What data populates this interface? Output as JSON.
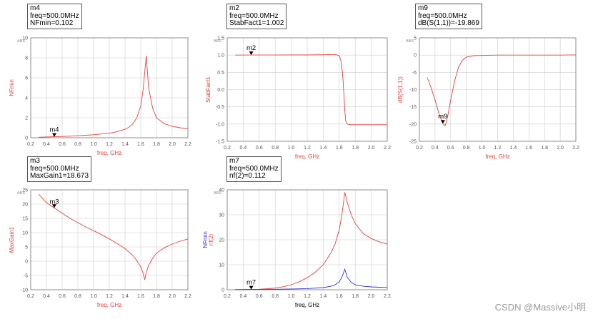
{
  "colors": {
    "trace_red": "#e8403c",
    "trace_blue": "#3333cc",
    "axis_text": "#555555",
    "grid": "#cccccc",
    "label_red": "#e8403c"
  },
  "watermark": "CSDN @Massive小明",
  "chart_data": [
    {
      "id": "nfmin",
      "type": "line",
      "ylabel": "NFmin",
      "ylabel_color": "#e8403c",
      "xlabel": "freq, GHz",
      "xlabel_color": "#e8403c",
      "scale_note": "ABS",
      "xlim": [
        0.2,
        2.2
      ],
      "ylim": [
        0,
        10
      ],
      "xticks": [
        "0.2",
        "0.4",
        "0.6",
        "0.8",
        "1.0",
        "1.2",
        "1.4",
        "1.6",
        "1.8",
        "2.0",
        "2.2"
      ],
      "yticks": [
        "0",
        "2",
        "4",
        "6",
        "8",
        "10"
      ],
      "grid": true,
      "series": [
        {
          "color": "#e8403c",
          "x": [
            0.3,
            0.4,
            0.5,
            0.6,
            0.7,
            0.8,
            0.9,
            1.0,
            1.1,
            1.2,
            1.3,
            1.4,
            1.45,
            1.5,
            1.55,
            1.6,
            1.63,
            1.65,
            1.67,
            1.7,
            1.75,
            1.8,
            1.9,
            2.0,
            2.1,
            2.2
          ],
          "y": [
            0.05,
            0.08,
            0.102,
            0.13,
            0.16,
            0.2,
            0.25,
            0.3,
            0.38,
            0.45,
            0.6,
            0.85,
            1.05,
            1.4,
            2.0,
            3.2,
            4.8,
            6.5,
            8.2,
            5.0,
            3.0,
            2.0,
            1.4,
            1.15,
            1.0,
            0.9
          ]
        }
      ],
      "marker": {
        "name": "m4",
        "x": 0.5,
        "y": 0.102,
        "label_dy": -10
      },
      "readout": {
        "name": "m4",
        "lines": [
          "freq=500.0MHz",
          "NFmin=0.102"
        ]
      }
    },
    {
      "id": "stabfact",
      "type": "line",
      "ylabel": "StabFact1",
      "ylabel_color": "#e8403c",
      "xlabel": "freq, GHz",
      "xlabel_color": "#e8403c",
      "scale_note": "ABS",
      "xlim": [
        0.2,
        2.2
      ],
      "ylim": [
        -1.5,
        1.5
      ],
      "xticks": [
        "0.2",
        "0.4",
        "0.6",
        "0.8",
        "1.0",
        "1.2",
        "1.4",
        "1.6",
        "1.8",
        "2.0",
        "2.2"
      ],
      "yticks": [
        "-1.5",
        "-1.0",
        "-0.5",
        "0.0",
        "0.5",
        "1.0",
        "1.5"
      ],
      "grid": true,
      "series": [
        {
          "color": "#e8403c",
          "x": [
            0.3,
            0.5,
            0.8,
            1.0,
            1.2,
            1.4,
            1.55,
            1.6,
            1.62,
            1.64,
            1.65,
            1.66,
            1.67,
            1.68,
            1.7,
            1.75,
            1.8,
            2.0,
            2.2
          ],
          "y": [
            1.0,
            1.002,
            1.002,
            1.003,
            1.004,
            1.01,
            1.02,
            0.98,
            0.85,
            0.5,
            0.2,
            -0.2,
            -0.6,
            -0.9,
            -1.0,
            -1.02,
            -1.02,
            -1.02,
            -1.02
          ]
        }
      ],
      "marker": {
        "name": "m2",
        "x": 0.5,
        "y": 1.002,
        "label_dy": -10
      },
      "readout": {
        "name": "m2",
        "lines": [
          "freq=500.0MHz",
          "StabFact1=1.002"
        ]
      }
    },
    {
      "id": "s11",
      "type": "line",
      "ylabel": "dB(S(1,1))",
      "ylabel_color": "#e8403c",
      "xlabel": "freq, GHz",
      "xlabel_color": "#e8403c",
      "scale_note": "ABS",
      "xlim": [
        0.2,
        2.2
      ],
      "ylim": [
        -25,
        5
      ],
      "xticks": [
        "0.2",
        "0.4",
        "0.6",
        "0.8",
        "1.0",
        "1.2",
        "1.4",
        "1.6",
        "1.8",
        "2.0",
        "2.2"
      ],
      "yticks": [
        "-25",
        "-20",
        "-15",
        "-10",
        "-5",
        "0",
        "5"
      ],
      "grid": true,
      "series": [
        {
          "color": "#e8403c",
          "x": [
            0.3,
            0.35,
            0.4,
            0.45,
            0.5,
            0.53,
            0.56,
            0.6,
            0.65,
            0.7,
            0.75,
            0.8,
            0.9,
            1.0,
            1.2,
            1.4,
            1.6,
            1.8,
            2.0,
            2.2
          ],
          "y": [
            -6.5,
            -9.5,
            -13,
            -17,
            -19.869,
            -20.5,
            -18,
            -13,
            -7.5,
            -3.5,
            -1.5,
            -0.6,
            -0.2,
            -0.1,
            0,
            0,
            0,
            0,
            0,
            0.05
          ]
        }
      ],
      "marker": {
        "name": "m9",
        "x": 0.5,
        "y": -19.869,
        "label_dy": -10
      },
      "readout": {
        "name": "m9",
        "lines": [
          "freq=500.0MHz",
          "dB(S(1,1))=-19.869"
        ]
      }
    },
    {
      "id": "maxgain",
      "type": "line",
      "ylabel": "MaxGain1",
      "ylabel_color": "#e8403c",
      "xlabel": "freq, GHz",
      "xlabel_color": "#e8403c",
      "scale_note": "ABS",
      "xlim": [
        0.2,
        2.2
      ],
      "ylim": [
        -10,
        25
      ],
      "xticks": [
        "0.2",
        "0.4",
        "0.6",
        "0.8",
        "1.0",
        "1.2",
        "1.4",
        "1.6",
        "1.8",
        "2.0",
        "2.2"
      ],
      "yticks": [
        "-10",
        "-5",
        "0",
        "5",
        "10",
        "15",
        "20",
        "25"
      ],
      "grid": true,
      "series": [
        {
          "color": "#e8403c",
          "x": [
            0.3,
            0.4,
            0.5,
            0.6,
            0.7,
            0.8,
            0.9,
            1.0,
            1.1,
            1.2,
            1.3,
            1.4,
            1.5,
            1.55,
            1.6,
            1.63,
            1.65,
            1.67,
            1.7,
            1.75,
            1.8,
            1.9,
            2.0,
            2.1,
            2.2
          ],
          "y": [
            23.5,
            20.5,
            18.673,
            16.8,
            15.0,
            13.5,
            12.0,
            10.7,
            9.3,
            7.8,
            6.2,
            4.4,
            2.0,
            0.2,
            -2.0,
            -4.2,
            -6.5,
            -4.0,
            -1.5,
            1.0,
            2.8,
            4.7,
            6.0,
            7.0,
            7.8
          ]
        }
      ],
      "marker": {
        "name": "m3",
        "x": 0.5,
        "y": 18.673,
        "label_dy": -9
      },
      "readout": {
        "name": "m3",
        "lines": [
          "freq=500.0MHz",
          "MaxGain1=18.673"
        ]
      }
    },
    {
      "id": "nf2",
      "type": "line",
      "ylabel": "NFmin",
      "ylabel_color": "#3333cc",
      "ylabel2": "nf(2)",
      "ylabel2_color": "#e8403c",
      "xlabel": "freq, GHz",
      "xlabel_color": "#000000",
      "scale_note": "ABS",
      "xlim": [
        0.2,
        2.2
      ],
      "ylim": [
        0,
        40
      ],
      "xticks": [
        "0.2",
        "0.4",
        "0.6",
        "0.8",
        "1.0",
        "1.2",
        "1.4",
        "1.6",
        "1.8",
        "2.0",
        "2.2"
      ],
      "yticks": [
        "0",
        "10",
        "20",
        "30",
        "40"
      ],
      "grid": true,
      "series": [
        {
          "name": "nf(2)",
          "color": "#e8403c",
          "x": [
            0.3,
            0.4,
            0.5,
            0.6,
            0.7,
            0.8,
            0.9,
            1.0,
            1.1,
            1.2,
            1.3,
            1.4,
            1.5,
            1.55,
            1.6,
            1.63,
            1.65,
            1.67,
            1.7,
            1.75,
            1.8,
            1.9,
            2.0,
            2.1,
            2.2
          ],
          "y": [
            0.05,
            0.08,
            0.112,
            0.2,
            0.4,
            0.7,
            1.2,
            2.0,
            3.2,
            4.8,
            7.0,
            10.0,
            15.0,
            18.5,
            24.0,
            29.5,
            34.0,
            39.0,
            35.0,
            30.0,
            26.5,
            22.5,
            20.5,
            19.2,
            18.3
          ]
        },
        {
          "name": "NFmin",
          "color": "#3333cc",
          "x": [
            0.3,
            0.5,
            0.8,
            1.0,
            1.2,
            1.4,
            1.5,
            1.55,
            1.6,
            1.63,
            1.65,
            1.67,
            1.7,
            1.75,
            1.8,
            1.9,
            2.0,
            2.1,
            2.2
          ],
          "y": [
            0.05,
            0.1,
            0.2,
            0.3,
            0.45,
            0.85,
            1.4,
            2.0,
            3.2,
            4.8,
            6.5,
            8.2,
            5.0,
            3.0,
            2.0,
            1.4,
            1.15,
            1.0,
            0.9
          ]
        }
      ],
      "marker": {
        "name": "m7",
        "x": 0.5,
        "y": 0.112,
        "label_dy": -10
      },
      "readout": {
        "name": "m7",
        "lines": [
          "freq=500.0MHz",
          "nf(2)=0.112"
        ]
      }
    }
  ]
}
